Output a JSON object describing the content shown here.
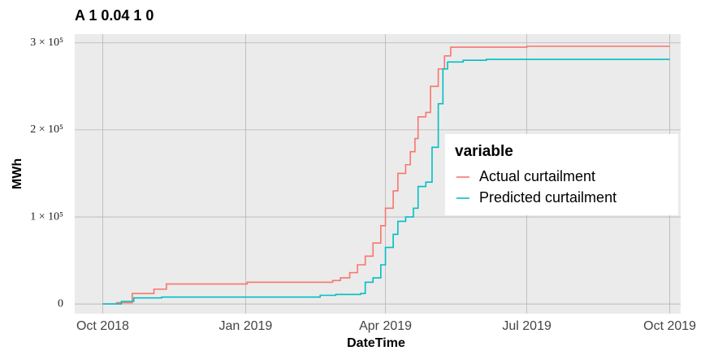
{
  "chart_data": {
    "type": "line",
    "step": true,
    "title": "A 1 0.04 1 0",
    "xlabel": "DateTime",
    "ylabel": "MWh",
    "xlim": [
      "2018-09-13",
      "2019-10-08"
    ],
    "xticks": [
      {
        "value": "2018-10-01",
        "label": "Oct 2018"
      },
      {
        "value": "2019-01-01",
        "label": "Jan 2019"
      },
      {
        "value": "2019-04-01",
        "label": "Apr 2019"
      },
      {
        "value": "2019-07-01",
        "label": "Jul 2019"
      },
      {
        "value": "2019-10-01",
        "label": "Oct 2019"
      }
    ],
    "ylim": [
      -11000,
      310000
    ],
    "yticks": [
      0,
      {
        "value": 100000,
        "label": "1 × 10⁵"
      },
      {
        "value": 200000,
        "label": "2 × 10⁵"
      },
      {
        "value": 300000,
        "label": "3 × 10⁵"
      }
    ],
    "grid": true,
    "legend_title": "variable",
    "legend_position": "right",
    "series": [
      {
        "name": "Actual curtailment",
        "color": "#f8766d",
        "x": [
          "2018-10-01",
          "2018-10-10",
          "2018-10-20",
          "2018-11-03",
          "2018-11-11",
          "2019-01-02",
          "2019-02-26",
          "2019-03-03",
          "2019-03-09",
          "2019-03-14",
          "2019-03-19",
          "2019-03-24",
          "2019-03-29",
          "2019-04-01",
          "2019-04-06",
          "2019-04-09",
          "2019-04-14",
          "2019-04-17",
          "2019-04-20",
          "2019-04-22",
          "2019-04-27",
          "2019-04-30",
          "2019-05-05",
          "2019-05-09",
          "2019-05-13",
          "2019-07-01",
          "2019-10-01"
        ],
        "values": [
          0,
          1500,
          12000,
          17000,
          23000,
          25000,
          27000,
          30000,
          36000,
          45000,
          55000,
          70000,
          90000,
          110000,
          130000,
          150000,
          160000,
          175000,
          190000,
          215000,
          220000,
          250000,
          270000,
          285000,
          295000,
          296000,
          296000
        ]
      },
      {
        "name": "Predicted curtailment",
        "color": "#00bfc4",
        "x": [
          "2018-10-01",
          "2018-10-13",
          "2018-10-21",
          "2018-11-08",
          "2019-02-18",
          "2019-02-28",
          "2019-03-16",
          "2019-03-19",
          "2019-03-24",
          "2019-03-29",
          "2019-04-01",
          "2019-04-06",
          "2019-04-09",
          "2019-04-14",
          "2019-04-19",
          "2019-04-22",
          "2019-04-27",
          "2019-05-01",
          "2019-05-05",
          "2019-05-08",
          "2019-05-11",
          "2019-05-21",
          "2019-06-05",
          "2019-10-01"
        ],
        "values": [
          0,
          3000,
          7000,
          8000,
          10000,
          11000,
          12000,
          25000,
          30000,
          45000,
          65000,
          80000,
          95000,
          100000,
          110000,
          135000,
          140000,
          180000,
          230000,
          270000,
          278000,
          280000,
          281000,
          281000
        ]
      }
    ]
  }
}
